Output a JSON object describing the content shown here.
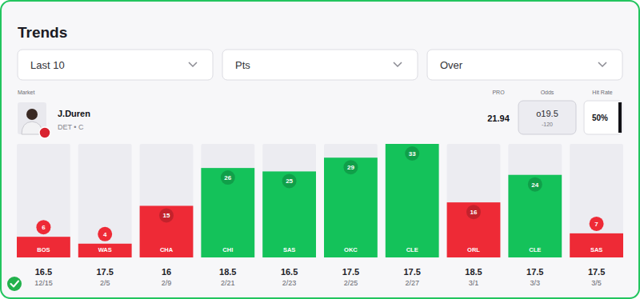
{
  "header": {
    "title": "Trends",
    "filters": [
      "Last 10",
      "Pts",
      "Over"
    ]
  },
  "market": {
    "columns": [
      "Market",
      "PRO",
      "Odds",
      "Hit Rate"
    ],
    "player": "J.Duren",
    "team": "DET • C",
    "pro": "21.94",
    "odds_line": "o19.5",
    "odds_price": "-120",
    "hit_rate": "50%"
  },
  "chart_data": {
    "type": "bar",
    "categories": [
      "BOS",
      "WAS",
      "CHA",
      "CHI",
      "SAS",
      "OKC",
      "CLE",
      "ORL",
      "CLE",
      "SAS"
    ],
    "values": [
      6,
      4,
      15,
      26,
      25,
      29,
      33,
      16,
      24,
      7
    ],
    "lines": [
      16.5,
      17.5,
      16,
      18.5,
      16.5,
      17.5,
      17.5,
      18.5,
      17.5,
      17.5
    ],
    "dates": [
      "12/15",
      "2/5",
      "2/9",
      "2/21",
      "2/23",
      "2/25",
      "2/27",
      "3/1",
      "3/3",
      "3/5"
    ],
    "colors": [
      "#ee2a36",
      "#ee2a36",
      "#ee2a36",
      "#14c25a",
      "#14c25a",
      "#14c25a",
      "#14c25a",
      "#ee2a36",
      "#14c25a",
      "#ee2a36"
    ],
    "ylim": [
      0,
      33
    ],
    "data_labels": true,
    "tick_labels": "x"
  }
}
